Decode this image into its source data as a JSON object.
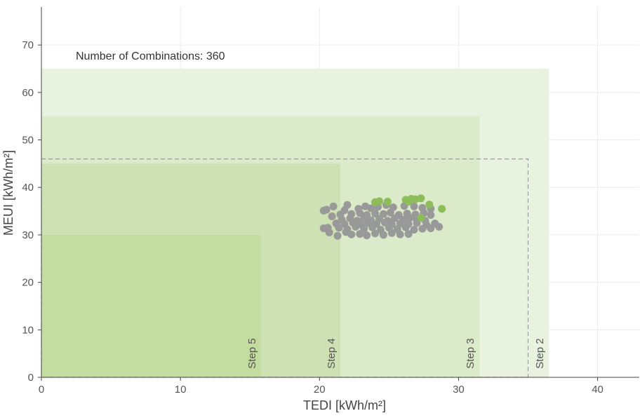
{
  "chart_data": {
    "type": "scatter",
    "title": "",
    "xlabel": "TEDI [kWh/m²]",
    "ylabel": "MEUI [kWh/m²]",
    "xlim": [
      0,
      43
    ],
    "ylim": [
      0,
      78
    ],
    "x_ticks": [
      0,
      10,
      20,
      30,
      40
    ],
    "y_ticks": [
      0,
      10,
      20,
      30,
      40,
      50,
      60,
      70
    ],
    "grid": true,
    "annotation": "Number of Combinations: 360",
    "steps": [
      {
        "label": "Step 2",
        "tedi": 36.5,
        "meui": 65,
        "fill": "#e9f2de"
      },
      {
        "label": "Step 3",
        "tedi": 31.5,
        "meui": 55,
        "fill": "#dbeac9"
      },
      {
        "label": "Step 4",
        "tedi": 21.5,
        "meui": 45,
        "fill": "#cde1b5"
      },
      {
        "label": "Step 5",
        "tedi": 15.8,
        "meui": 30,
        "fill": "#c3dc9f"
      }
    ],
    "threshold": {
      "tedi": 35,
      "meui": 46
    },
    "colors": {
      "grey": "#999999",
      "green": "#8cbd59"
    },
    "series": [
      {
        "color": "grey",
        "points": [
          [
            20.3,
            35.1
          ],
          [
            20.5,
            35.3
          ],
          [
            21.0,
            36.0
          ],
          [
            21.8,
            35.2
          ],
          [
            22.0,
            36.3
          ],
          [
            22.8,
            35.5
          ],
          [
            23.3,
            36.0
          ],
          [
            23.7,
            35.6
          ],
          [
            24.2,
            35.9
          ],
          [
            24.8,
            36.3
          ],
          [
            25.3,
            35.8
          ],
          [
            26.1,
            36.1
          ],
          [
            26.8,
            36.0
          ],
          [
            27.4,
            35.7
          ],
          [
            28.0,
            35.5
          ],
          [
            20.9,
            33.9
          ],
          [
            21.5,
            34.3
          ],
          [
            22.3,
            34.4
          ],
          [
            22.9,
            34.6
          ],
          [
            23.4,
            34.2
          ],
          [
            24.0,
            34.5
          ],
          [
            24.6,
            34.4
          ],
          [
            25.1,
            34.7
          ],
          [
            25.7,
            34.2
          ],
          [
            26.3,
            34.5
          ],
          [
            26.9,
            34.3
          ],
          [
            27.5,
            34.6
          ],
          [
            28.0,
            34.2
          ],
          [
            21.6,
            33.2
          ],
          [
            22.2,
            33.5
          ],
          [
            22.7,
            33.0
          ],
          [
            23.2,
            33.6
          ],
          [
            23.7,
            33.1
          ],
          [
            24.3,
            33.4
          ],
          [
            24.9,
            33.0
          ],
          [
            25.4,
            33.5
          ],
          [
            26.0,
            33.2
          ],
          [
            26.5,
            33.6
          ],
          [
            27.0,
            33.2
          ],
          [
            27.6,
            33.0
          ],
          [
            21.2,
            32.4
          ],
          [
            21.8,
            32.3
          ],
          [
            22.4,
            32.6
          ],
          [
            23.0,
            32.2
          ],
          [
            23.5,
            32.5
          ],
          [
            24.1,
            32.3
          ],
          [
            24.7,
            32.6
          ],
          [
            25.2,
            32.2
          ],
          [
            25.8,
            32.4
          ],
          [
            26.4,
            32.3
          ],
          [
            27.0,
            32.5
          ],
          [
            27.7,
            32.1
          ],
          [
            28.3,
            32.4
          ],
          [
            20.3,
            31.4
          ],
          [
            20.6,
            31.5
          ],
          [
            21.4,
            31.5
          ],
          [
            22.0,
            31.2
          ],
          [
            22.6,
            31.7
          ],
          [
            23.2,
            31.3
          ],
          [
            23.8,
            31.6
          ],
          [
            24.4,
            31.1
          ],
          [
            25.0,
            31.5
          ],
          [
            25.6,
            31.2
          ],
          [
            26.2,
            31.6
          ],
          [
            26.8,
            31.1
          ],
          [
            27.4,
            31.3
          ],
          [
            28.0,
            31.4
          ],
          [
            28.6,
            31.7
          ],
          [
            20.7,
            30.5
          ],
          [
            21.3,
            29.8
          ],
          [
            21.9,
            30.6
          ],
          [
            22.3,
            30.1
          ],
          [
            22.9,
            30.2
          ],
          [
            23.4,
            29.9
          ],
          [
            24.0,
            30.3
          ],
          [
            24.6,
            30.0
          ],
          [
            25.2,
            30.4
          ],
          [
            25.8,
            30.1
          ],
          [
            26.4,
            30.2
          ]
        ]
      },
      {
        "color": "green",
        "points": [
          [
            24.0,
            36.9
          ],
          [
            24.3,
            37.1
          ],
          [
            24.9,
            37.0
          ],
          [
            26.2,
            37.4
          ],
          [
            26.4,
            37.0
          ],
          [
            26.6,
            37.6
          ],
          [
            26.9,
            37.5
          ],
          [
            27.3,
            37.7
          ],
          [
            27.9,
            36.4
          ],
          [
            28.8,
            35.5
          ],
          [
            27.3,
            33.6
          ]
        ]
      }
    ]
  }
}
